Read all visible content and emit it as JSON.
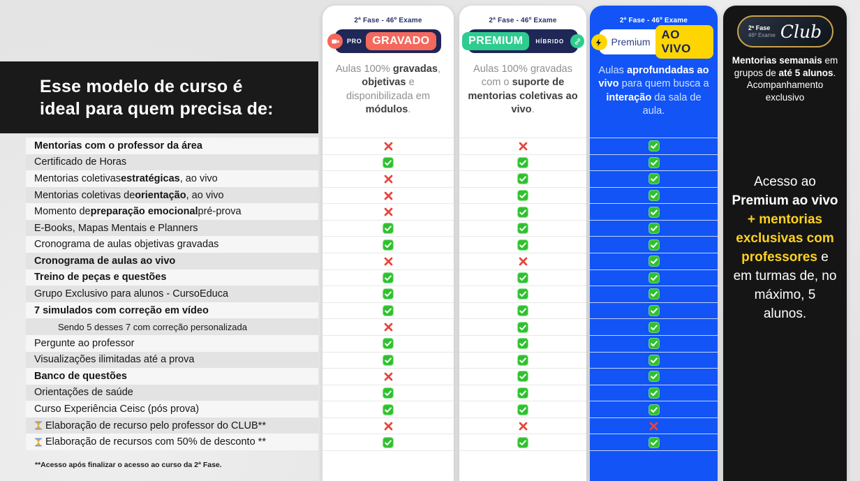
{
  "title_block": {
    "text": "Esse modelo de curso é\nideal para quem precisa de:"
  },
  "footnote": "**Acesso após finalizar o acesso ao curso da 2ª Fase.",
  "colors": {
    "blue_card": "#1254f5",
    "black_card": "#151515",
    "navy_pill": "#1e2756",
    "coral": "#f4695c",
    "green": "#2ecc8f",
    "yellow": "#ffd500",
    "check_green": "#2ec12e",
    "cross_red": "#e5453a",
    "club_gold": "#c9a24b",
    "club_yellow_text": "#ffd21f"
  },
  "plans": [
    {
      "id": "gravado",
      "phase_label": "2ª Fase - 46º Exame",
      "logo": {
        "badge": "PRO",
        "title": "GRAVADO",
        "icon": "camera-icon"
      },
      "description_parts": [
        {
          "t": "Aulas 100% "
        },
        {
          "t": "gravadas",
          "b": true
        },
        {
          "t": ", "
        },
        {
          "t": "objetivas",
          "b": true
        },
        {
          "t": " e disponibilizada em "
        },
        {
          "t": "módulos",
          "b": true
        },
        {
          "t": "."
        }
      ]
    },
    {
      "id": "premium-hibrido",
      "phase_label": "2ª Fase - 46º Exame",
      "logo": {
        "title": "PREMIUM",
        "suffix": "HÍBRIDO",
        "icon": "link-icon"
      },
      "description_parts": [
        {
          "t": "Aulas 100% gravadas com o "
        },
        {
          "t": "suporte de mentorias coletivas ao vivo",
          "b": true
        },
        {
          "t": "."
        }
      ]
    },
    {
      "id": "premium-ao-vivo",
      "phase_label": "2ª Fase - 46º Exame",
      "logo": {
        "prefix": "Premium",
        "title": "AO VIVO",
        "icon": "lightning-icon"
      },
      "description_parts": [
        {
          "t": "Aulas "
        },
        {
          "t": "aprofundadas ao vivo",
          "b": true
        },
        {
          "t": " para quem busca a "
        },
        {
          "t": "interação",
          "b": true
        },
        {
          "t": " da sala de aula."
        }
      ]
    },
    {
      "id": "club",
      "logo": {
        "badge_top": "2ª Fase",
        "badge_bottom": "46º Exame",
        "title": "Club"
      },
      "description_parts": [
        {
          "t": "Mentorias semanais",
          "b": true
        },
        {
          "t": " em grupos de "
        },
        {
          "t": "até 5 alunos",
          "b": true
        },
        {
          "t": ". Acompanhamento exclusivo"
        }
      ]
    }
  ],
  "club_text_parts": [
    {
      "t": "Acesso ao "
    },
    {
      "t": "Premium ao vivo",
      "b": true
    },
    {
      "t": " + ",
      "b": true,
      "c": "yellow"
    },
    {
      "t": "mentorias exclusivas com professores",
      "b": true,
      "c": "yellow"
    },
    {
      "t": " e em turmas de, no máximo, 5 alunos."
    }
  ],
  "rows": [
    {
      "bold": true,
      "parts": [
        {
          "t": "Mentorias com o professor da área"
        }
      ],
      "marks": [
        "x",
        "x",
        "v"
      ]
    },
    {
      "parts": [
        {
          "t": "Certificado de Horas"
        }
      ],
      "marks": [
        "v",
        "v",
        "v"
      ]
    },
    {
      "parts": [
        {
          "t": "Mentorias coletivas "
        },
        {
          "t": "estratégicas",
          "b": true
        },
        {
          "t": ", ao vivo"
        }
      ],
      "marks": [
        "x",
        "v",
        "v"
      ]
    },
    {
      "parts": [
        {
          "t": "Mentorias coletivas de "
        },
        {
          "t": "orientação",
          "b": true
        },
        {
          "t": ", ao vivo"
        }
      ],
      "marks": [
        "x",
        "v",
        "v"
      ]
    },
    {
      "parts": [
        {
          "t": "Momento de "
        },
        {
          "t": "preparação emocional",
          "b": true
        },
        {
          "t": " pré-prova"
        }
      ],
      "marks": [
        "x",
        "v",
        "v"
      ]
    },
    {
      "parts": [
        {
          "t": "E-Books, Mapas Mentais e Planners"
        }
      ],
      "marks": [
        "v",
        "v",
        "v"
      ]
    },
    {
      "parts": [
        {
          "t": "Cronograma de aulas objetivas gravadas"
        }
      ],
      "marks": [
        "v",
        "v",
        "v"
      ]
    },
    {
      "bold": true,
      "parts": [
        {
          "t": "Cronograma de aulas ao vivo"
        }
      ],
      "marks": [
        "x",
        "x",
        "v"
      ]
    },
    {
      "bold": true,
      "parts": [
        {
          "t": "Treino de peças e questões"
        }
      ],
      "marks": [
        "v",
        "v",
        "v"
      ]
    },
    {
      "parts": [
        {
          "t": "Grupo Exclusivo para alunos - CursoEduca"
        }
      ],
      "marks": [
        "v",
        "v",
        "v"
      ]
    },
    {
      "bold": true,
      "parts": [
        {
          "t": "7 simulados com correção em vídeo"
        }
      ],
      "marks": [
        "v",
        "v",
        "v"
      ]
    },
    {
      "indent": true,
      "parts": [
        {
          "t": "Sendo 5 desses 7 com correção personalizada"
        }
      ],
      "marks": [
        "x",
        "v",
        "v"
      ]
    },
    {
      "parts": [
        {
          "t": "Pergunte ao professor"
        }
      ],
      "marks": [
        "v",
        "v",
        "v"
      ]
    },
    {
      "parts": [
        {
          "t": "Visualizações ilimitadas até a prova"
        }
      ],
      "marks": [
        "v",
        "v",
        "v"
      ]
    },
    {
      "bold": true,
      "parts": [
        {
          "t": "Banco de questões"
        }
      ],
      "marks": [
        "x",
        "v",
        "v"
      ]
    },
    {
      "parts": [
        {
          "t": "Orientações de saúde"
        }
      ],
      "marks": [
        "v",
        "v",
        "v"
      ]
    },
    {
      "parts": [
        {
          "t": "Curso Experiência Ceisc (pós prova)"
        }
      ],
      "marks": [
        "v",
        "v",
        "v"
      ]
    },
    {
      "hourglass": true,
      "parts": [
        {
          "t": "Elaboração de recurso pelo professor do CLUB**"
        }
      ],
      "marks": [
        "x",
        "x",
        "x"
      ]
    },
    {
      "hourglass": true,
      "parts": [
        {
          "t": "Elaboração de recursos com 50% de desconto **"
        }
      ],
      "marks": [
        "v",
        "v",
        "v"
      ]
    }
  ],
  "chart_data": {
    "type": "table",
    "title": "Esse modelo de curso é ideal para quem precisa de:",
    "columns": [
      "PRO GRAVADO",
      "PREMIUM HÍBRIDO",
      "Premium AO VIVO",
      "2ª Fase 46º Exame Club"
    ],
    "column_descriptions": [
      "Aulas 100% gravadas, objetivas e disponibilizada em módulos.",
      "Aulas 100% gravadas com o suporte de mentorias coletivas ao vivo.",
      "Aulas aprofundadas ao vivo para quem busca a interação da sala de aula.",
      "Mentorias semanais em grupos de até 5 alunos. Acompanhamento exclusivo"
    ],
    "club_column_text": "Acesso ao Premium ao vivo + mentorias exclusivas com professores e em turmas de, no máximo, 5 alunos.",
    "rows": [
      {
        "feature": "Mentorias com o professor da área",
        "values": [
          "não",
          "não",
          "sim"
        ]
      },
      {
        "feature": "Certificado de Horas",
        "values": [
          "sim",
          "sim",
          "sim"
        ]
      },
      {
        "feature": "Mentorias coletivas estratégicas, ao vivo",
        "values": [
          "não",
          "sim",
          "sim"
        ]
      },
      {
        "feature": "Mentorias coletivas de orientação, ao vivo",
        "values": [
          "não",
          "sim",
          "sim"
        ]
      },
      {
        "feature": "Momento de preparação emocional pré-prova",
        "values": [
          "não",
          "sim",
          "sim"
        ]
      },
      {
        "feature": "E-Books, Mapas Mentais e Planners",
        "values": [
          "sim",
          "sim",
          "sim"
        ]
      },
      {
        "feature": "Cronograma de aulas objetivas gravadas",
        "values": [
          "sim",
          "sim",
          "sim"
        ]
      },
      {
        "feature": "Cronograma de aulas ao vivo",
        "values": [
          "não",
          "não",
          "sim"
        ]
      },
      {
        "feature": "Treino de peças e questões",
        "values": [
          "sim",
          "sim",
          "sim"
        ]
      },
      {
        "feature": "Grupo Exclusivo para alunos - CursoEduca",
        "values": [
          "sim",
          "sim",
          "sim"
        ]
      },
      {
        "feature": "7 simulados com correção em vídeo",
        "values": [
          "sim",
          "sim",
          "sim"
        ]
      },
      {
        "feature": "Sendo 5 desses 7 com correção personalizada",
        "values": [
          "não",
          "sim",
          "sim"
        ]
      },
      {
        "feature": "Pergunte ao professor",
        "values": [
          "sim",
          "sim",
          "sim"
        ]
      },
      {
        "feature": "Visualizações ilimitadas até a prova",
        "values": [
          "sim",
          "sim",
          "sim"
        ]
      },
      {
        "feature": "Banco de questões",
        "values": [
          "não",
          "sim",
          "sim"
        ]
      },
      {
        "feature": "Orientações de saúde",
        "values": [
          "sim",
          "sim",
          "sim"
        ]
      },
      {
        "feature": "Curso Experiência Ceisc (pós prova)",
        "values": [
          "sim",
          "sim",
          "sim"
        ]
      },
      {
        "feature": "Elaboração de recurso pelo professor do CLUB**",
        "values": [
          "não",
          "não",
          "não"
        ]
      },
      {
        "feature": "Elaboração de recursos com 50% de desconto **",
        "values": [
          "sim",
          "sim",
          "sim"
        ]
      }
    ],
    "footnote": "**Acesso após finalizar o acesso ao curso da 2ª Fase."
  }
}
